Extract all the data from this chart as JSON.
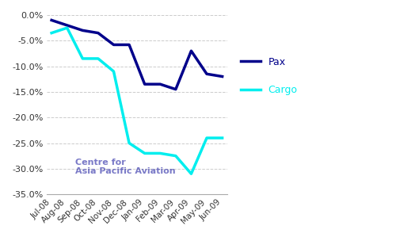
{
  "months": [
    "Jul-08",
    "Aug-08",
    "Sep-08",
    "Oct-08",
    "Nov-08",
    "Dec-08",
    "Jan-09",
    "Feb-09",
    "Mar-09",
    "Apr-09",
    "May-09",
    "Jun-09"
  ],
  "pax": [
    -1.0,
    -2.0,
    -3.0,
    -3.5,
    -5.8,
    -5.8,
    -13.5,
    -13.5,
    -14.5,
    -7.0,
    -11.5,
    -12.0
  ],
  "cargo": [
    -3.5,
    -2.5,
    -8.5,
    -8.5,
    -11.0,
    -25.0,
    -27.0,
    -27.0,
    -27.5,
    -31.0,
    -24.0,
    -24.0
  ],
  "pax_color": "#00008B",
  "cargo_color": "#00EEEE",
  "background_color": "#FFFFFF",
  "grid_color": "#CCCCCC",
  "ylim": [
    -35.0,
    0.5
  ],
  "yticks": [
    0.0,
    -5.0,
    -10.0,
    -15.0,
    -20.0,
    -25.0,
    -30.0,
    -35.0
  ],
  "watermark_line1": "Centre for",
  "watermark_line2": "Asia Pacific Aviation",
  "legend_pax": "Pax",
  "legend_cargo": "Cargo",
  "linewidth": 2.5
}
